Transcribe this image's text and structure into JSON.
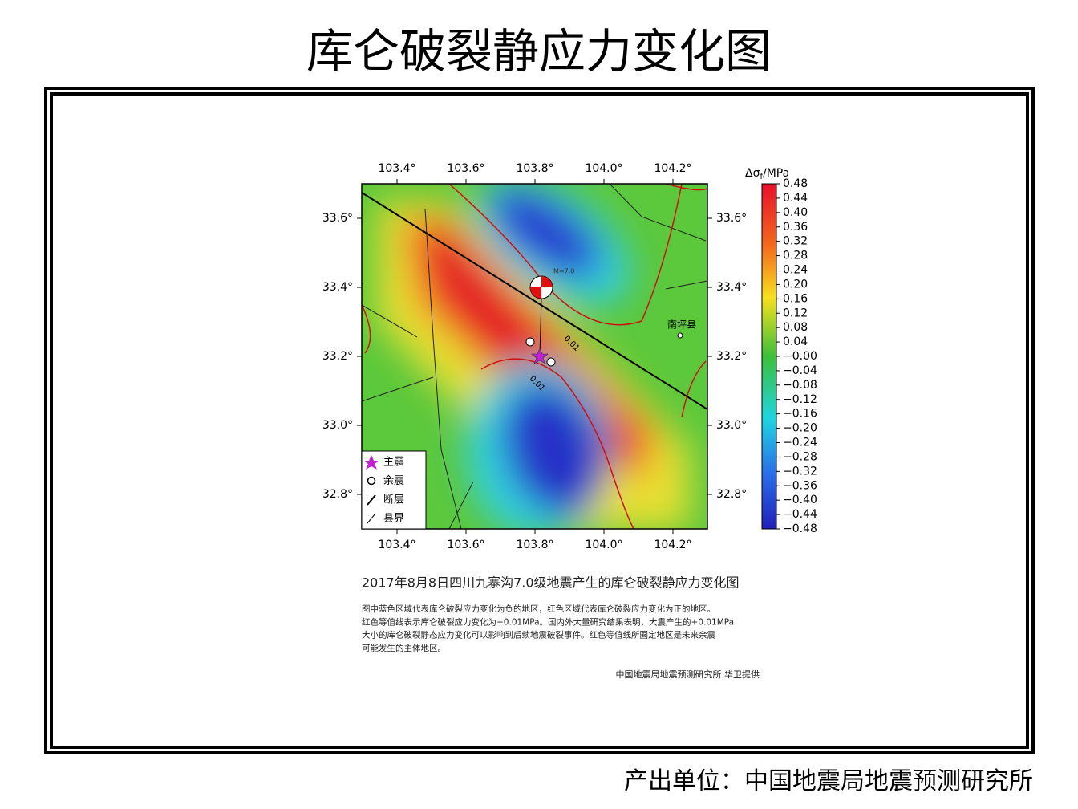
{
  "header": {
    "title": "库仑破裂静应力变化图"
  },
  "map": {
    "lon_ticks": [
      "103.4°",
      "103.6°",
      "103.8°",
      "104.0°",
      "104.2°"
    ],
    "lat_ticks": [
      "33.6°",
      "33.4°",
      "33.2°",
      "33.0°",
      "32.8°"
    ],
    "county_label": "南坪县",
    "contour_label_upper": "0.01",
    "contour_label_lower": "0.01",
    "event_label": "M=7.0"
  },
  "colorbar": {
    "symbol": "Δσ",
    "subscript": "f",
    "unit": "/MPa",
    "ticks": [
      "0.48",
      "0.44",
      "0.40",
      "0.36",
      "0.32",
      "0.28",
      "0.24",
      "0.20",
      "0.16",
      "0.12",
      "0.08",
      "0.04",
      "−0.00",
      "−0.04",
      "−0.08",
      "−0.12",
      "−0.16",
      "−0.20",
      "−0.24",
      "−0.28",
      "−0.32",
      "−0.36",
      "−0.40",
      "−0.44",
      "−0.48"
    ]
  },
  "legend": {
    "items": [
      "主震",
      "余震",
      "断层",
      "县界"
    ]
  },
  "caption": {
    "title": "2017年8月8日四川九寨沟7.0级地震产生的库仑破裂静应力变化图",
    "lines": [
      "图中蓝色区域代表库仑破裂应力变化为负的地区，红色区域代表库仑破裂应力变化为正的地区。",
      "红色等值线表示库仑破裂应力变化为+0.01MPa。国内外大量研究结果表明，大震产生的+0.01MPa",
      "大小的库仑破裂静态应力变化可以影响到后续地震破裂事件。红色等值线所圈定地区是未来余震",
      "可能发生的主体地区。"
    ],
    "credit": "中国地震局地震预测研究所 华卫提供"
  },
  "footer": {
    "text": "产出单位：中国地震局地震预测研究所"
  }
}
